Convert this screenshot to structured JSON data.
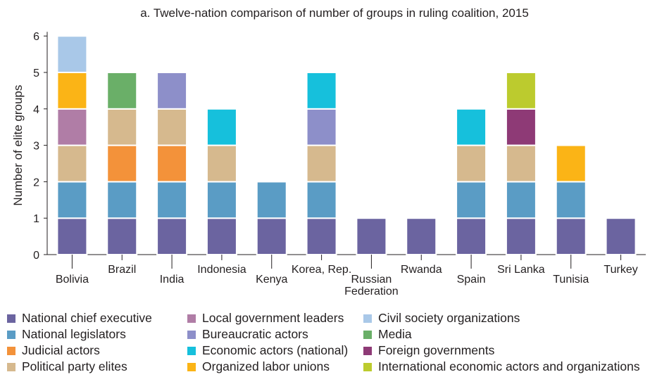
{
  "chart_data": {
    "type": "bar",
    "stacked": true,
    "title": "a. Twelve-nation comparison of number of groups in ruling coalition, 2015",
    "xlabel": "",
    "ylabel": "Number of elite groups",
    "ylim": [
      0,
      6
    ],
    "yticks": [
      0,
      1,
      2,
      3,
      4,
      5,
      6
    ],
    "grid": false,
    "categories": [
      "Bolivia",
      "Brazil",
      "India",
      "Indonesia",
      "Kenya",
      "Korea, Rep.",
      "Russian Federation",
      "Rwanda",
      "Spain",
      "Sri Lanka",
      "Tunisia",
      "Turkey"
    ],
    "category_label_lines": [
      [
        "Bolivia"
      ],
      [
        "Brazil"
      ],
      [
        "India"
      ],
      [
        "Indonesia"
      ],
      [
        "Kenya"
      ],
      [
        "Korea, Rep."
      ],
      [
        "Russian",
        "Federation"
      ],
      [
        "Rwanda"
      ],
      [
        "Spain"
      ],
      [
        "Sri Lanka"
      ],
      [
        "Tunisia"
      ],
      [
        "Turkey"
      ]
    ],
    "category_label_level": [
      "low",
      "high",
      "low",
      "high",
      "low",
      "high",
      "low",
      "high",
      "low",
      "high",
      "low",
      "high"
    ],
    "series": [
      {
        "name": "National chief executive",
        "color": "#6b64a0",
        "values": [
          1,
          1,
          1,
          1,
          1,
          1,
          1,
          1,
          1,
          1,
          1,
          1
        ]
      },
      {
        "name": "National legislators",
        "color": "#5a9cc5",
        "values": [
          1,
          1,
          1,
          1,
          1,
          1,
          0,
          0,
          1,
          1,
          1,
          0
        ]
      },
      {
        "name": "Judicial actors",
        "color": "#f3923a",
        "values": [
          0,
          1,
          1,
          0,
          0,
          0,
          0,
          0,
          0,
          0,
          0,
          0
        ]
      },
      {
        "name": "Political party elites",
        "color": "#d6b98e",
        "values": [
          1,
          1,
          1,
          1,
          0,
          1,
          0,
          0,
          1,
          1,
          0,
          0
        ]
      },
      {
        "name": "Local government leaders",
        "color": "#b07da6",
        "values": [
          1,
          0,
          0,
          0,
          0,
          0,
          0,
          0,
          0,
          0,
          0,
          0
        ]
      },
      {
        "name": "Bureaucratic actors",
        "color": "#8d8fc9",
        "values": [
          0,
          0,
          1,
          0,
          0,
          1,
          0,
          0,
          0,
          0,
          0,
          0
        ]
      },
      {
        "name": "Economic actors (national)",
        "color": "#16c0dc",
        "values": [
          0,
          0,
          0,
          1,
          0,
          1,
          0,
          0,
          1,
          0,
          0,
          0
        ]
      },
      {
        "name": "Organized labor unions",
        "color": "#fbb416",
        "values": [
          1,
          0,
          0,
          0,
          0,
          0,
          0,
          0,
          0,
          0,
          1,
          0
        ]
      },
      {
        "name": "Civil society organizations",
        "color": "#a9c8e8",
        "values": [
          1,
          0,
          0,
          0,
          0,
          0,
          0,
          0,
          0,
          0,
          0,
          0
        ]
      },
      {
        "name": "Media",
        "color": "#6aaf68",
        "values": [
          0,
          1,
          0,
          0,
          0,
          0,
          0,
          0,
          0,
          0,
          0,
          0
        ]
      },
      {
        "name": "Foreign governments",
        "color": "#8e3a76",
        "values": [
          0,
          0,
          0,
          0,
          0,
          0,
          0,
          0,
          0,
          1,
          0,
          0
        ]
      },
      {
        "name": "International economic actors and organizations",
        "color": "#bccb2e",
        "values": [
          0,
          0,
          0,
          0,
          0,
          0,
          0,
          0,
          0,
          1,
          0,
          0
        ]
      }
    ],
    "legend": {
      "placement": "bottom",
      "columns": [
        [
          "National chief executive",
          "National legislators",
          "Judicial actors",
          "Political party elites"
        ],
        [
          "Local government leaders",
          "Bureaucratic actors",
          "Economic actors (national)",
          "Organized labor unions"
        ],
        [
          "Civil society organizations",
          "Media",
          "Foreign governments",
          "International economic actors and organizations"
        ]
      ]
    }
  }
}
